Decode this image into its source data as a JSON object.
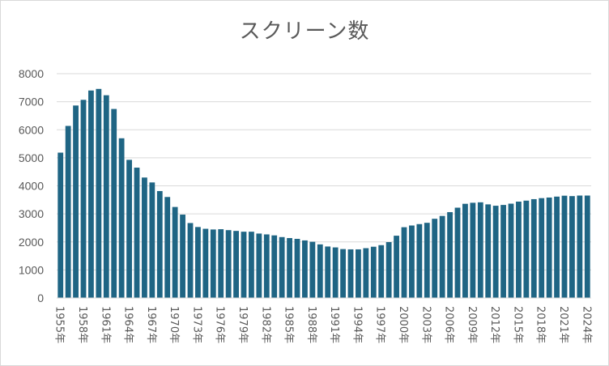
{
  "chart_data": {
    "type": "bar",
    "title": "スクリーン数",
    "xlabel": "",
    "ylabel": "",
    "ylim": [
      0,
      8000
    ],
    "yticks": [
      0,
      1000,
      2000,
      3000,
      4000,
      5000,
      6000,
      7000,
      8000
    ],
    "grid": true,
    "bar_color": "#1f6584",
    "categories": [
      "1955年",
      "1956年",
      "1957年",
      "1958年",
      "1959年",
      "1960年",
      "1961年",
      "1962年",
      "1963年",
      "1964年",
      "1965年",
      "1966年",
      "1967年",
      "1968年",
      "1969年",
      "1970年",
      "1971年",
      "1972年",
      "1973年",
      "1974年",
      "1975年",
      "1976年",
      "1977年",
      "1978年",
      "1979年",
      "1980年",
      "1981年",
      "1982年",
      "1983年",
      "1984年",
      "1985年",
      "1986年",
      "1987年",
      "1988年",
      "1989年",
      "1990年",
      "1991年",
      "1992年",
      "1993年",
      "1994年",
      "1995年",
      "1996年",
      "1997年",
      "1998年",
      "1999年",
      "2000年",
      "2001年",
      "2002年",
      "2003年",
      "2004年",
      "2005年",
      "2006年",
      "2007年",
      "2008年",
      "2009年",
      "2010年",
      "2011年",
      "2012年",
      "2013年",
      "2014年",
      "2015年",
      "2016年",
      "2017年",
      "2018年",
      "2019年",
      "2020年",
      "2021年",
      "2022年",
      "2023年",
      "2024年"
    ],
    "tick_labels": [
      "1955年",
      "1958年",
      "1961年",
      "1964年",
      "1967年",
      "1970年",
      "1973年",
      "1976年",
      "1979年",
      "1982年",
      "1985年",
      "1988年",
      "1991年",
      "1994年",
      "1997年",
      "2000年",
      "2003年",
      "2006年",
      "2009年",
      "2012年",
      "2015年",
      "2018年",
      "2021年",
      "2024年"
    ],
    "values": [
      5184,
      6137,
      6865,
      7067,
      7400,
      7457,
      7231,
      6742,
      5696,
      4927,
      4649,
      4296,
      4121,
      3814,
      3602,
      3246,
      2974,
      2673,
      2531,
      2468,
      2443,
      2453,
      2420,
      2392,
      2364,
      2364,
      2298,
      2268,
      2233,
      2172,
      2137,
      2109,
      2053,
      2005,
      1912,
      1836,
      1804,
      1744,
      1734,
      1734,
      1776,
      1828,
      1884,
      1993,
      2221,
      2524,
      2585,
      2635,
      2681,
      2825,
      2926,
      3062,
      3221,
      3359,
      3396,
      3412,
      3339,
      3290,
      3318,
      3364,
      3437,
      3472,
      3525,
      3561,
      3583,
      3616,
      3648,
      3634,
      3653,
      3653
    ]
  }
}
